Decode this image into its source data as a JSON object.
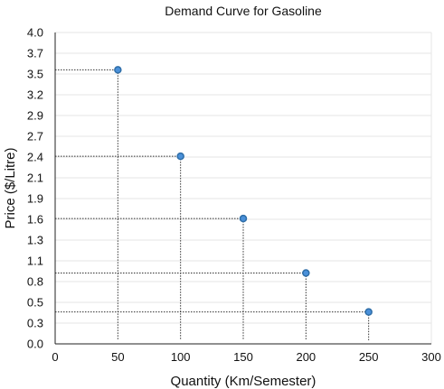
{
  "chart_data": {
    "type": "scatter",
    "title": "Demand Curve for Gasoline",
    "xlabel": "Quantity (Km/Semester)",
    "ylabel": "Price ($/Litre)",
    "xlim": [
      0,
      300
    ],
    "ylim": [
      0,
      4.0
    ],
    "x_ticks": [
      0,
      50,
      100,
      150,
      200,
      250,
      300
    ],
    "y_ticks": [
      "0.0",
      "0.3",
      "0.5",
      "0.8",
      "1.1",
      "1.3",
      "1.6",
      "1.9",
      "2.1",
      "2.4",
      "2.7",
      "2.9",
      "3.2",
      "3.5",
      "3.7",
      "4.0"
    ],
    "grid": true,
    "point_color": "#4a90d9",
    "points": [
      {
        "x": 50,
        "y": 3.52
      },
      {
        "x": 100,
        "y": 2.41
      },
      {
        "x": 150,
        "y": 1.61
      },
      {
        "x": 200,
        "y": 0.91
      },
      {
        "x": 250,
        "y": 0.41
      }
    ]
  }
}
